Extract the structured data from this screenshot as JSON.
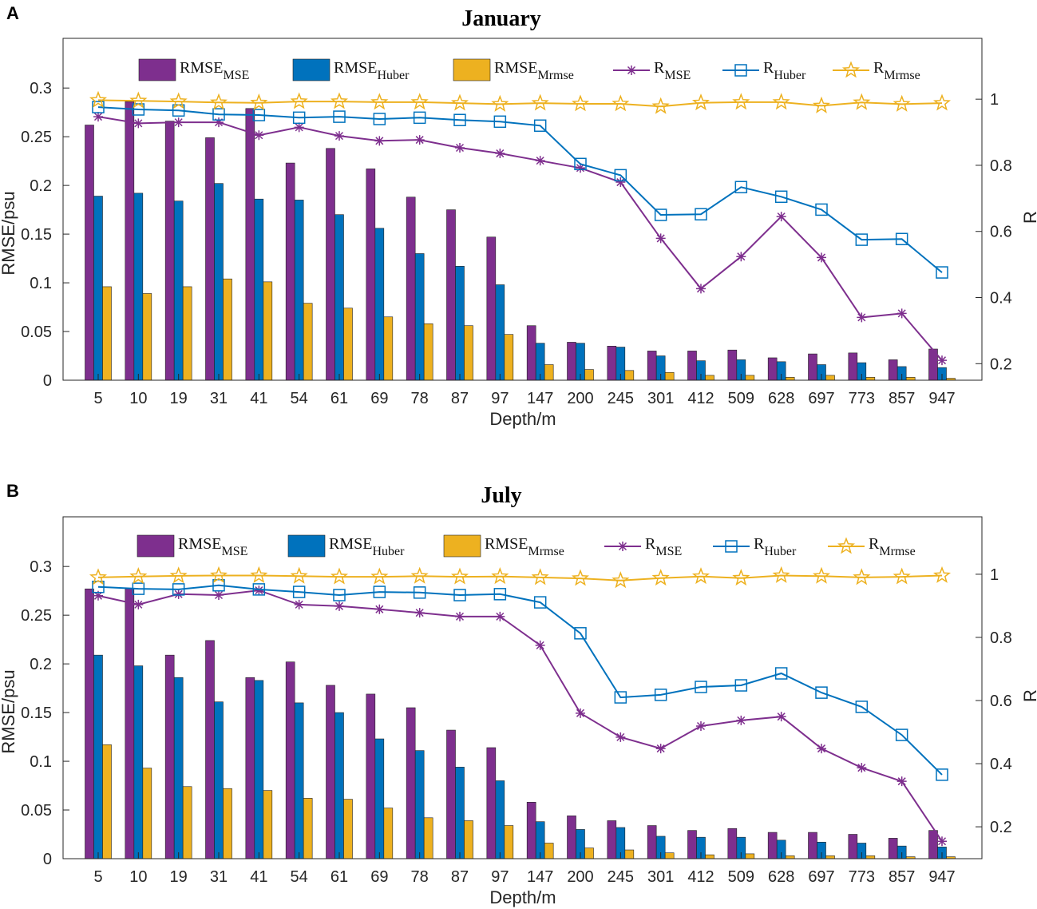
{
  "colors": {
    "mse": "#7E2F8E",
    "huber": "#0072BD",
    "mrmse": "#EDB120"
  },
  "chart_data": [
    {
      "panel_label": "A",
      "type": "bar+line",
      "title": "January",
      "xlabel": "Depth/m",
      "ylabel": "RMSE/psu",
      "ylabel_right": "R",
      "ylim": [
        0,
        0.351
      ],
      "ylim_right": [
        0.15,
        1.184
      ],
      "yticks": [
        "0",
        "0.05",
        "0.1",
        "0.15",
        "0.2",
        "0.25",
        "0.3"
      ],
      "yticks_right": [
        "0.2",
        "0.4",
        "0.6",
        "0.8",
        "1"
      ],
      "categories": [
        "5",
        "10",
        "19",
        "31",
        "41",
        "54",
        "61",
        "69",
        "78",
        "87",
        "97",
        "147",
        "200",
        "245",
        "301",
        "412",
        "509",
        "628",
        "697",
        "773",
        "857",
        "947"
      ],
      "legend": [
        {
          "main": "RMSE",
          "sub": "MSE"
        },
        {
          "main": "RMSE",
          "sub": "Huber"
        },
        {
          "main": "RMSE",
          "sub": "Mrmse"
        },
        {
          "main": "R",
          "sub": "MSE"
        },
        {
          "main": "R",
          "sub": "Huber"
        },
        {
          "main": "R",
          "sub": "Mrmse"
        }
      ],
      "bars": [
        {
          "name": "RMSE_MSE",
          "values": [
            0.262,
            0.286,
            0.266,
            0.249,
            0.279,
            0.223,
            0.238,
            0.217,
            0.188,
            0.175,
            0.147,
            0.056,
            0.039,
            0.035,
            0.03,
            0.03,
            0.031,
            0.023,
            0.027,
            0.028,
            0.021,
            0.032
          ]
        },
        {
          "name": "RMSE_Huber",
          "values": [
            0.189,
            0.192,
            0.184,
            0.202,
            0.186,
            0.185,
            0.17,
            0.156,
            0.13,
            0.117,
            0.098,
            0.038,
            0.038,
            0.034,
            0.025,
            0.02,
            0.021,
            0.019,
            0.016,
            0.018,
            0.014,
            0.013
          ]
        },
        {
          "name": "RMSE_Mrmse",
          "values": [
            0.096,
            0.089,
            0.096,
            0.104,
            0.101,
            0.079,
            0.074,
            0.065,
            0.058,
            0.056,
            0.047,
            0.016,
            0.011,
            0.01,
            0.008,
            0.005,
            0.005,
            0.003,
            0.005,
            0.003,
            0.003,
            0.002
          ]
        }
      ],
      "lines": [
        {
          "name": "R_MSE",
          "values": [
            0.947,
            0.927,
            0.93,
            0.93,
            0.891,
            0.915,
            0.889,
            0.874,
            0.877,
            0.853,
            0.836,
            0.814,
            0.792,
            0.749,
            0.579,
            0.427,
            0.524,
            0.645,
            0.521,
            0.34,
            0.352,
            0.21
          ]
        },
        {
          "name": "R_Huber",
          "values": [
            0.976,
            0.969,
            0.966,
            0.954,
            0.952,
            0.944,
            0.947,
            0.94,
            0.944,
            0.937,
            0.932,
            0.92,
            0.804,
            0.77,
            0.65,
            0.652,
            0.734,
            0.705,
            0.666,
            0.575,
            0.577,
            0.476
          ]
        },
        {
          "name": "R_Mrmse",
          "values": [
            0.997,
            0.995,
            0.993,
            0.99,
            0.989,
            0.993,
            0.993,
            0.991,
            0.991,
            0.988,
            0.985,
            0.988,
            0.986,
            0.986,
            0.978,
            0.989,
            0.991,
            0.991,
            0.98,
            0.99,
            0.985,
            0.988
          ]
        }
      ]
    },
    {
      "panel_label": "B",
      "type": "bar+line",
      "title": "July",
      "xlabel": "Depth/m",
      "ylabel": "RMSE/psu",
      "ylabel_right": "R",
      "ylim": [
        0,
        0.351
      ],
      "ylim_right": [
        0.099,
        1.182
      ],
      "yticks": [
        "0",
        "0.05",
        "0.1",
        "0.15",
        "0.2",
        "0.25",
        "0.3"
      ],
      "yticks_right": [
        "0.2",
        "0.4",
        "0.6",
        "0.8",
        "1"
      ],
      "categories": [
        "5",
        "10",
        "19",
        "31",
        "41",
        "54",
        "61",
        "69",
        "78",
        "87",
        "97",
        "147",
        "200",
        "245",
        "301",
        "412",
        "509",
        "628",
        "697",
        "773",
        "857",
        "947"
      ],
      "legend": [
        {
          "main": "RMSE",
          "sub": "MSE"
        },
        {
          "main": "RMSE",
          "sub": "Huber"
        },
        {
          "main": "RMSE",
          "sub": "Mrmse"
        },
        {
          "main": "R",
          "sub": "MSE"
        },
        {
          "main": "R",
          "sub": "Huber"
        },
        {
          "main": "R",
          "sub": "Mrmse"
        }
      ],
      "bars": [
        {
          "name": "RMSE_MSE",
          "values": [
            0.277,
            0.277,
            0.209,
            0.224,
            0.186,
            0.202,
            0.178,
            0.169,
            0.155,
            0.132,
            0.114,
            0.058,
            0.044,
            0.039,
            0.034,
            0.029,
            0.031,
            0.027,
            0.027,
            0.025,
            0.021,
            0.029
          ]
        },
        {
          "name": "RMSE_Huber",
          "values": [
            0.209,
            0.198,
            0.186,
            0.161,
            0.183,
            0.16,
            0.15,
            0.123,
            0.111,
            0.094,
            0.08,
            0.038,
            0.03,
            0.032,
            0.023,
            0.022,
            0.022,
            0.019,
            0.017,
            0.016,
            0.013,
            0.012
          ]
        },
        {
          "name": "RMSE_Mrmse",
          "values": [
            0.117,
            0.093,
            0.074,
            0.072,
            0.07,
            0.062,
            0.061,
            0.052,
            0.042,
            0.039,
            0.034,
            0.016,
            0.011,
            0.009,
            0.006,
            0.004,
            0.005,
            0.003,
            0.003,
            0.003,
            0.002,
            0.002
          ]
        }
      ],
      "lines": [
        {
          "name": "R_MSE",
          "values": [
            0.932,
            0.904,
            0.937,
            0.934,
            0.949,
            0.904,
            0.899,
            0.889,
            0.878,
            0.866,
            0.866,
            0.775,
            0.56,
            0.484,
            0.448,
            0.519,
            0.537,
            0.549,
            0.448,
            0.387,
            0.344,
            0.154
          ]
        },
        {
          "name": "R_Huber",
          "values": [
            0.96,
            0.954,
            0.952,
            0.965,
            0.952,
            0.944,
            0.934,
            0.944,
            0.942,
            0.934,
            0.937,
            0.911,
            0.813,
            0.61,
            0.618,
            0.643,
            0.648,
            0.686,
            0.625,
            0.58,
            0.491,
            0.365
          ]
        },
        {
          "name": "R_Mrmse",
          "values": [
            0.99,
            0.993,
            0.995,
            0.996,
            0.996,
            0.994,
            0.992,
            0.992,
            0.994,
            0.992,
            0.993,
            0.99,
            0.987,
            0.98,
            0.988,
            0.993,
            0.988,
            0.996,
            0.994,
            0.99,
            0.992,
            0.996
          ]
        }
      ]
    }
  ]
}
